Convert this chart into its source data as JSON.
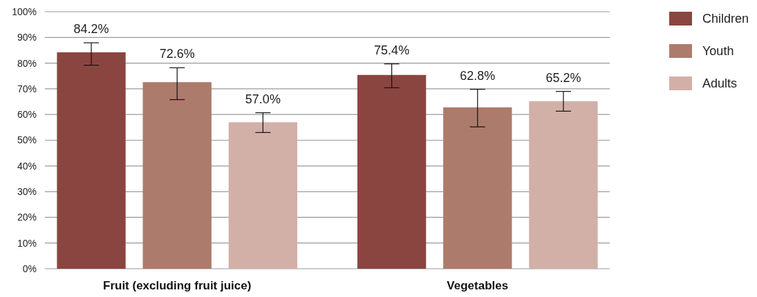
{
  "chart_data": {
    "type": "bar",
    "categories": [
      "Fruit (excluding fruit juice)",
      "Vegetables"
    ],
    "series": [
      {
        "name": "Children",
        "color": "#8b4540",
        "values": [
          84.2,
          75.4
        ],
        "errors": [
          [
            79.2,
            87.9
          ],
          [
            70.4,
            79.7
          ]
        ]
      },
      {
        "name": "Youth",
        "color": "#ad7b6c",
        "values": [
          72.6,
          62.8
        ],
        "errors": [
          [
            65.8,
            78.2
          ],
          [
            55.2,
            69.8
          ]
        ]
      },
      {
        "name": "Adults",
        "color": "#d2b0a7",
        "values": [
          57.0,
          65.2
        ],
        "errors": [
          [
            53.0,
            60.7
          ],
          [
            61.3,
            69.0
          ]
        ]
      }
    ],
    "ylim": [
      0,
      100
    ],
    "yticks": [
      {
        "value": 0,
        "label": "0%"
      },
      {
        "value": 10,
        "label": "10%"
      },
      {
        "value": 20,
        "label": "20%"
      },
      {
        "value": 30,
        "label": "30%"
      },
      {
        "value": 40,
        "label": "40%"
      },
      {
        "value": 50,
        "label": "50%"
      },
      {
        "value": 60,
        "label": "60%"
      },
      {
        "value": 70,
        "label": "70%"
      },
      {
        "value": 80,
        "label": "80%"
      },
      {
        "value": 90,
        "label": "90%"
      },
      {
        "value": 100,
        "label": "100%"
      }
    ],
    "grid": "y",
    "legend": "right",
    "value_labels": [
      [
        "84.2%",
        "75.4%"
      ],
      [
        "72.6%",
        "62.8%"
      ],
      [
        "57.0%",
        "65.2%"
      ]
    ]
  }
}
